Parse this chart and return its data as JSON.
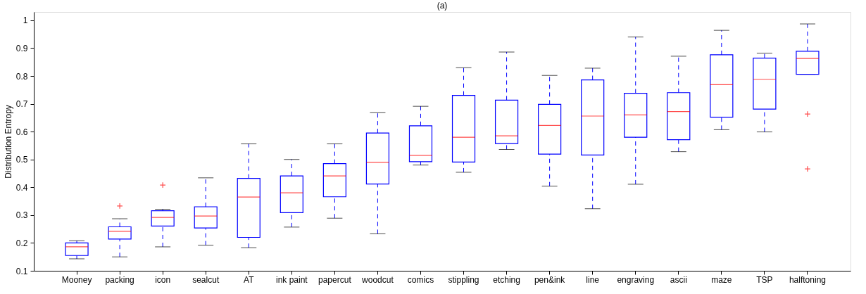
{
  "chart_data": {
    "type": "box",
    "title": "(a)",
    "ylabel": "Distribution Entropy",
    "categories": [
      "Mooney",
      "packing",
      "icon",
      "sealcut",
      "AT",
      "ink paint",
      "papercut",
      "woodcut",
      "comics",
      "stippling",
      "etching",
      "pen&ink",
      "line",
      "engraving",
      "ascii",
      "maze",
      "TSP",
      "halftoning"
    ],
    "ylim": [
      0.1,
      1.03
    ],
    "yticks": [
      0.1,
      0.2,
      0.3,
      0.4,
      0.5,
      0.6,
      0.7,
      0.8,
      0.9,
      1
    ],
    "series": [
      {
        "color": "#0000ff",
        "boxes": [
          {
            "low": 0.143,
            "q1": 0.155,
            "median": 0.186,
            "q3": 0.2,
            "high": 0.208
          },
          {
            "low": 0.15,
            "q1": 0.214,
            "median": 0.242,
            "q3": 0.258,
            "high": 0.287,
            "outliers": [
              0.333
            ]
          },
          {
            "low": 0.186,
            "q1": 0.261,
            "median": 0.292,
            "q3": 0.316,
            "high": 0.321,
            "outliers": [
              0.408
            ]
          },
          {
            "low": 0.192,
            "q1": 0.254,
            "median": 0.297,
            "q3": 0.33,
            "high": 0.434
          },
          {
            "low": 0.183,
            "q1": 0.22,
            "median": 0.365,
            "q3": 0.432,
            "high": 0.556
          },
          {
            "low": 0.257,
            "q1": 0.309,
            "median": 0.38,
            "q3": 0.441,
            "high": 0.5
          },
          {
            "low": 0.289,
            "q1": 0.366,
            "median": 0.441,
            "q3": 0.485,
            "high": 0.556
          },
          {
            "low": 0.233,
            "q1": 0.412,
            "median": 0.49,
            "q3": 0.595,
            "high": 0.669
          },
          {
            "low": 0.48,
            "q1": 0.492,
            "median": 0.515,
            "q3": 0.621,
            "high": 0.691
          },
          {
            "low": 0.454,
            "q1": 0.491,
            "median": 0.58,
            "q3": 0.73,
            "high": 0.83
          },
          {
            "low": 0.536,
            "q1": 0.557,
            "median": 0.585,
            "q3": 0.713,
            "high": 0.886
          },
          {
            "low": 0.404,
            "q1": 0.519,
            "median": 0.622,
            "q3": 0.698,
            "high": 0.802
          },
          {
            "low": 0.323,
            "q1": 0.516,
            "median": 0.656,
            "q3": 0.786,
            "high": 0.828
          },
          {
            "low": 0.411,
            "q1": 0.58,
            "median": 0.66,
            "q3": 0.738,
            "high": 0.94
          },
          {
            "low": 0.528,
            "q1": 0.571,
            "median": 0.672,
            "q3": 0.74,
            "high": 0.871
          },
          {
            "low": 0.607,
            "q1": 0.652,
            "median": 0.769,
            "q3": 0.876,
            "high": 0.964
          },
          {
            "low": 0.599,
            "q1": 0.681,
            "median": 0.788,
            "q3": 0.864,
            "high": 0.882
          },
          {
            "low": 0.806,
            "q1": 0.806,
            "median": 0.863,
            "q3": 0.889,
            "high": 0.987,
            "outliers": [
              0.663,
              0.466
            ]
          }
        ]
      }
    ]
  }
}
